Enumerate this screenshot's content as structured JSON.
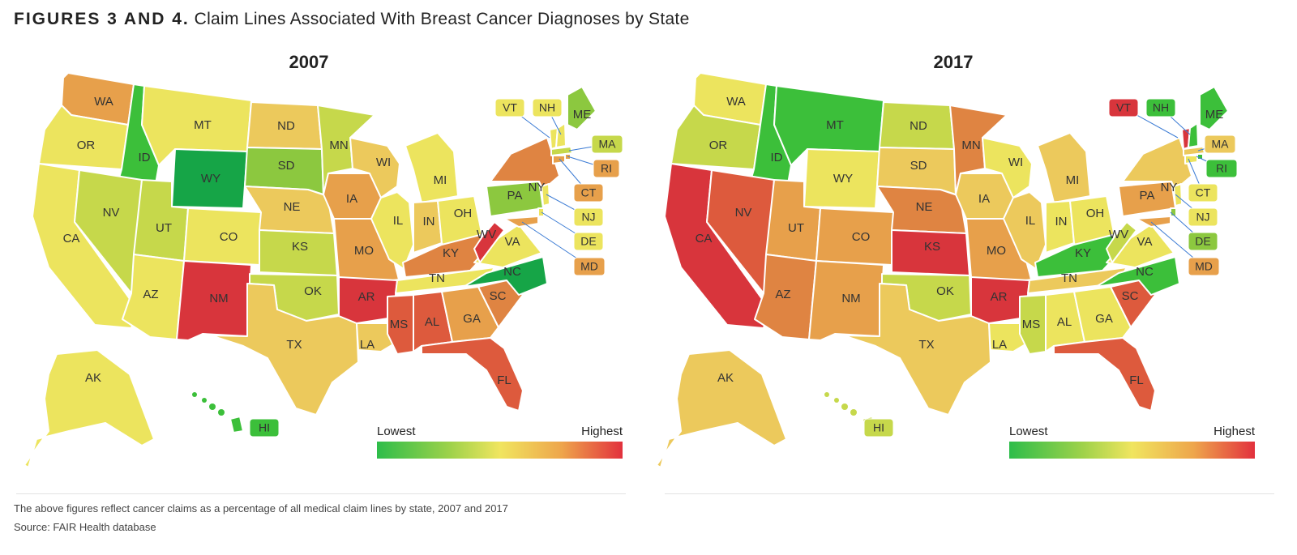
{
  "figure": {
    "lead": "FIGURES 3 AND 4.",
    "title": "Claim Lines Associated With Breast Cancer Diagnoses by State",
    "footnote": "The above figures reflect cancer claims as a percentage of all medical claim lines by state, 2007 and 2017",
    "source": "Source: FAIR Health database"
  },
  "legend": {
    "low": "Lowest",
    "high": "Highest"
  },
  "colors": {
    "deep_green": "#16a547",
    "green": "#3cbf3a",
    "light_green": "#8cc83f",
    "yellow_green": "#c6d84b",
    "yellow": "#ece45e",
    "light_orange": "#ecc95c",
    "orange": "#e7a04b",
    "dark_orange": "#df8442",
    "red_orange": "#dd5a3d",
    "red": "#d8353c",
    "leader_line": "#3b7bd4"
  },
  "maps": [
    {
      "year": "2007",
      "states": [
        {
          "code": "WA",
          "color": "orange"
        },
        {
          "code": "OR",
          "color": "yellow"
        },
        {
          "code": "CA",
          "color": "yellow"
        },
        {
          "code": "ID",
          "color": "green"
        },
        {
          "code": "NV",
          "color": "yellow_green"
        },
        {
          "code": "MT",
          "color": "yellow"
        },
        {
          "code": "WY",
          "color": "deep_green"
        },
        {
          "code": "UT",
          "color": "yellow_green"
        },
        {
          "code": "AZ",
          "color": "yellow"
        },
        {
          "code": "CO",
          "color": "yellow"
        },
        {
          "code": "NM",
          "color": "red"
        },
        {
          "code": "ND",
          "color": "light_orange"
        },
        {
          "code": "SD",
          "color": "light_green"
        },
        {
          "code": "NE",
          "color": "light_orange"
        },
        {
          "code": "KS",
          "color": "yellow_green"
        },
        {
          "code": "OK",
          "color": "yellow_green"
        },
        {
          "code": "TX",
          "color": "light_orange"
        },
        {
          "code": "MN",
          "color": "yellow_green"
        },
        {
          "code": "IA",
          "color": "orange"
        },
        {
          "code": "MO",
          "color": "orange"
        },
        {
          "code": "AR",
          "color": "red"
        },
        {
          "code": "LA",
          "color": "light_orange"
        },
        {
          "code": "WI",
          "color": "light_orange"
        },
        {
          "code": "IL",
          "color": "yellow"
        },
        {
          "code": "MI",
          "color": "yellow"
        },
        {
          "code": "IN",
          "color": "light_orange"
        },
        {
          "code": "OH",
          "color": "yellow"
        },
        {
          "code": "KY",
          "color": "dark_orange"
        },
        {
          "code": "TN",
          "color": "yellow"
        },
        {
          "code": "MS",
          "color": "red_orange"
        },
        {
          "code": "AL",
          "color": "red_orange"
        },
        {
          "code": "GA",
          "color": "orange"
        },
        {
          "code": "FL",
          "color": "red_orange"
        },
        {
          "code": "SC",
          "color": "dark_orange"
        },
        {
          "code": "NC",
          "color": "deep_green"
        },
        {
          "code": "VA",
          "color": "yellow"
        },
        {
          "code": "WV",
          "color": "red"
        },
        {
          "code": "PA",
          "color": "light_green"
        },
        {
          "code": "NY",
          "color": "dark_orange"
        },
        {
          "code": "ME",
          "color": "light_green"
        },
        {
          "code": "VT",
          "color": "yellow"
        },
        {
          "code": "NH",
          "color": "yellow"
        },
        {
          "code": "MA",
          "color": "yellow_green"
        },
        {
          "code": "RI",
          "color": "orange"
        },
        {
          "code": "CT",
          "color": "orange"
        },
        {
          "code": "NJ",
          "color": "yellow"
        },
        {
          "code": "DE",
          "color": "yellow"
        },
        {
          "code": "MD",
          "color": "orange"
        },
        {
          "code": "AK",
          "color": "yellow"
        },
        {
          "code": "HI",
          "color": "green"
        }
      ]
    },
    {
      "year": "2017",
      "states": [
        {
          "code": "WA",
          "color": "yellow"
        },
        {
          "code": "OR",
          "color": "yellow_green"
        },
        {
          "code": "CA",
          "color": "red"
        },
        {
          "code": "ID",
          "color": "green"
        },
        {
          "code": "NV",
          "color": "red_orange"
        },
        {
          "code": "MT",
          "color": "green"
        },
        {
          "code": "WY",
          "color": "yellow"
        },
        {
          "code": "UT",
          "color": "orange"
        },
        {
          "code": "AZ",
          "color": "dark_orange"
        },
        {
          "code": "CO",
          "color": "orange"
        },
        {
          "code": "NM",
          "color": "orange"
        },
        {
          "code": "ND",
          "color": "yellow_green"
        },
        {
          "code": "SD",
          "color": "light_orange"
        },
        {
          "code": "NE",
          "color": "dark_orange"
        },
        {
          "code": "KS",
          "color": "red"
        },
        {
          "code": "OK",
          "color": "yellow_green"
        },
        {
          "code": "TX",
          "color": "light_orange"
        },
        {
          "code": "MN",
          "color": "dark_orange"
        },
        {
          "code": "IA",
          "color": "light_orange"
        },
        {
          "code": "MO",
          "color": "orange"
        },
        {
          "code": "AR",
          "color": "red"
        },
        {
          "code": "LA",
          "color": "yellow"
        },
        {
          "code": "WI",
          "color": "yellow"
        },
        {
          "code": "IL",
          "color": "light_orange"
        },
        {
          "code": "MI",
          "color": "light_orange"
        },
        {
          "code": "IN",
          "color": "yellow"
        },
        {
          "code": "OH",
          "color": "yellow"
        },
        {
          "code": "KY",
          "color": "green"
        },
        {
          "code": "TN",
          "color": "light_orange"
        },
        {
          "code": "MS",
          "color": "yellow_green"
        },
        {
          "code": "AL",
          "color": "yellow"
        },
        {
          "code": "GA",
          "color": "yellow"
        },
        {
          "code": "FL",
          "color": "red_orange"
        },
        {
          "code": "SC",
          "color": "red_orange"
        },
        {
          "code": "NC",
          "color": "green"
        },
        {
          "code": "VA",
          "color": "yellow"
        },
        {
          "code": "WV",
          "color": "yellow_green"
        },
        {
          "code": "PA",
          "color": "orange"
        },
        {
          "code": "NY",
          "color": "light_orange"
        },
        {
          "code": "ME",
          "color": "green"
        },
        {
          "code": "VT",
          "color": "red"
        },
        {
          "code": "NH",
          "color": "green"
        },
        {
          "code": "MA",
          "color": "light_orange"
        },
        {
          "code": "RI",
          "color": "green"
        },
        {
          "code": "CT",
          "color": "yellow"
        },
        {
          "code": "NJ",
          "color": "yellow"
        },
        {
          "code": "DE",
          "color": "light_green"
        },
        {
          "code": "MD",
          "color": "orange"
        },
        {
          "code": "AK",
          "color": "light_orange"
        },
        {
          "code": "HI",
          "color": "yellow_green"
        }
      ]
    }
  ]
}
